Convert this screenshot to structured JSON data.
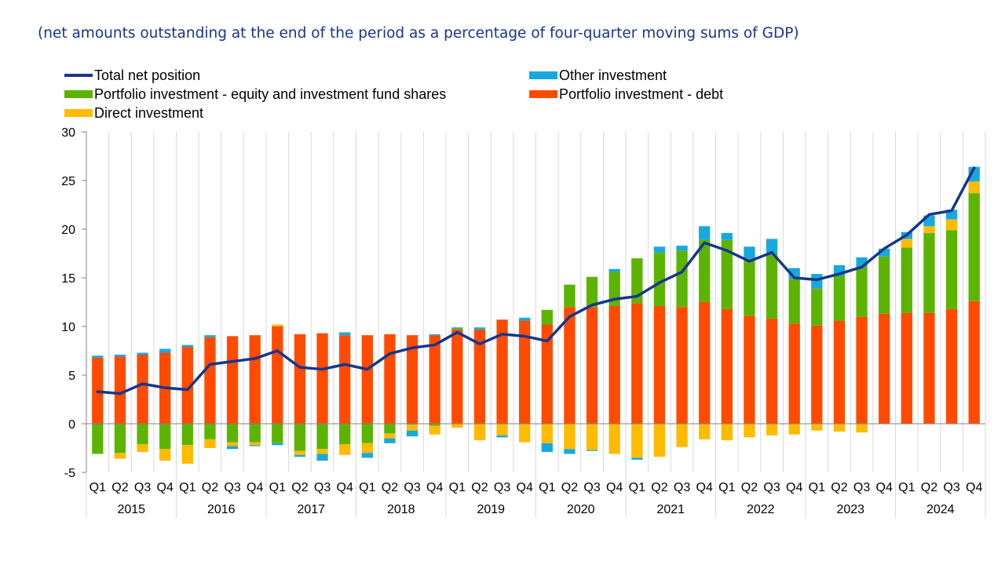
{
  "subtitle": "(net amounts outstanding at the end of the period as a percentage of four-quarter moving sums of GDP)",
  "colors": {
    "total": "#17368c",
    "other": "#17a9dd",
    "equity": "#5cb400",
    "debt": "#ff4b00",
    "direct": "#ffbb00",
    "grid": "#d9d9d9",
    "axis": "#808080"
  },
  "chart_data": {
    "type": "bar",
    "stacked": true,
    "title": "",
    "xlabel": "",
    "ylabel": "",
    "ylim": [
      -5,
      30
    ],
    "yticks": [
      -5,
      0,
      5,
      10,
      15,
      20,
      25,
      30
    ],
    "grid": "vertical",
    "legend_position": "top",
    "categories": [
      "Q1",
      "Q2",
      "Q3",
      "Q4",
      "Q1",
      "Q2",
      "Q3",
      "Q4",
      "Q1",
      "Q2",
      "Q3",
      "Q4",
      "Q1",
      "Q2",
      "Q3",
      "Q4",
      "Q1",
      "Q2",
      "Q3",
      "Q4",
      "Q1",
      "Q2",
      "Q3",
      "Q4",
      "Q1",
      "Q2",
      "Q3",
      "Q4",
      "Q1",
      "Q2",
      "Q3",
      "Q4",
      "Q1",
      "Q2",
      "Q3",
      "Q4",
      "Q1",
      "Q2",
      "Q3",
      "Q4"
    ],
    "years": [
      "2015",
      "2016",
      "2017",
      "2018",
      "2019",
      "2020",
      "2021",
      "2022",
      "2023",
      "2024"
    ],
    "series": [
      {
        "name": "Total net position",
        "type": "line",
        "color_key": "total",
        "values": [
          3.3,
          3.1,
          4.1,
          3.7,
          3.5,
          6.1,
          6.4,
          6.7,
          7.5,
          5.8,
          5.6,
          6.1,
          5.6,
          7.2,
          7.8,
          8.1,
          9.4,
          8.2,
          9.2,
          9.0,
          8.5,
          11.0,
          12.2,
          12.8,
          13.1,
          14.5,
          15.6,
          18.6,
          17.8,
          16.7,
          17.6,
          15.0,
          14.8,
          15.4,
          16.1,
          18.0,
          19.4,
          21.5,
          21.9,
          26.3
        ]
      },
      {
        "name": "Other investment",
        "type": "bar",
        "color_key": "other",
        "values": [
          0.2,
          0.2,
          0.2,
          0.4,
          0.2,
          0.2,
          -0.3,
          -0.1,
          -0.2,
          -0.2,
          -0.7,
          0.3,
          -0.5,
          -0.5,
          -0.6,
          0.1,
          0.1,
          0.2,
          -0.2,
          0.3,
          -0.9,
          -0.5,
          -0.1,
          0.3,
          -0.2,
          0.6,
          0.5,
          1.4,
          0.7,
          1.2,
          1.5,
          1.1,
          1.5,
          1.1,
          1.0,
          0.8,
          0.7,
          1.1,
          1.0,
          1.5
        ]
      },
      {
        "name": "Portfolio investment - equity and investment fund shares",
        "type": "bar",
        "color_key": "equity",
        "values": [
          -3.1,
          -3.0,
          -2.1,
          -2.6,
          -2.2,
          -1.6,
          -1.9,
          -1.9,
          -2.0,
          -2.8,
          -2.6,
          -2.1,
          -2.0,
          -1.0,
          -0.1,
          -0.2,
          0.1,
          0.0,
          0.0,
          0.0,
          1.5,
          2.3,
          3.1,
          3.5,
          4.6,
          5.5,
          5.8,
          6.4,
          7.1,
          5.9,
          6.7,
          4.6,
          3.8,
          4.6,
          5.1,
          5.9,
          6.7,
          8.2,
          8.1,
          11.1
        ]
      },
      {
        "name": "Portfolio investment - debt",
        "type": "bar",
        "color_key": "debt",
        "values": [
          6.8,
          6.9,
          7.1,
          7.3,
          7.9,
          8.9,
          9.0,
          9.1,
          10.0,
          9.2,
          9.3,
          9.1,
          9.1,
          9.2,
          9.1,
          9.1,
          9.7,
          9.7,
          10.7,
          10.6,
          10.2,
          12.0,
          12.0,
          12.1,
          12.4,
          12.1,
          12.0,
          12.5,
          11.8,
          11.1,
          10.8,
          10.3,
          10.1,
          10.6,
          11.0,
          11.3,
          11.4,
          11.4,
          11.8,
          12.6
        ]
      },
      {
        "name": "Direct investment",
        "type": "bar",
        "color_key": "direct",
        "values": [
          0.0,
          -0.6,
          -0.8,
          -1.2,
          -1.9,
          -0.9,
          -0.4,
          -0.3,
          0.2,
          -0.4,
          -0.5,
          -1.1,
          -1.0,
          -0.5,
          -0.6,
          -0.9,
          -0.4,
          -1.7,
          -1.2,
          -1.9,
          -2.0,
          -2.6,
          -2.7,
          -3.1,
          -3.5,
          -3.4,
          -2.4,
          -1.6,
          -1.7,
          -1.4,
          -1.2,
          -1.1,
          -0.7,
          -0.8,
          -0.9,
          0.0,
          0.9,
          0.7,
          1.1,
          1.2
        ]
      }
    ]
  }
}
